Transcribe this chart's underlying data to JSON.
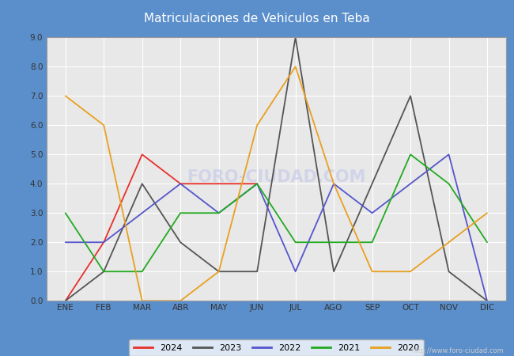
{
  "title": "Matriculaciones de Vehiculos en Teba",
  "months": [
    "ENE",
    "FEB",
    "MAR",
    "ABR",
    "MAY",
    "JUN",
    "JUL",
    "AGO",
    "SEP",
    "OCT",
    "NOV",
    "DIC"
  ],
  "series": {
    "2024": [
      0,
      2,
      5,
      4,
      4,
      4,
      null,
      null,
      null,
      null,
      null,
      null
    ],
    "2023": [
      0,
      1,
      4,
      2,
      1,
      1,
      9,
      1,
      4,
      7,
      1,
      0
    ],
    "2022": [
      2,
      2,
      3,
      4,
      3,
      4,
      1,
      4,
      3,
      4,
      5,
      0
    ],
    "2021": [
      3,
      1,
      1,
      3,
      3,
      4,
      2,
      2,
      2,
      5,
      4,
      2
    ],
    "2020": [
      7,
      6,
      0,
      0,
      1,
      6,
      8,
      4,
      1,
      1,
      2,
      3
    ]
  },
  "colors": {
    "2024": "#e8302a",
    "2023": "#555555",
    "2022": "#5555cc",
    "2021": "#22aa22",
    "2020": "#e8a020"
  },
  "ylim": [
    0.0,
    9.0
  ],
  "yticks": [
    0.0,
    1.0,
    2.0,
    3.0,
    4.0,
    5.0,
    6.0,
    7.0,
    8.0,
    9.0
  ],
  "title_bg_color": "#5b8fcb",
  "title_text_color": "#ffffff",
  "outer_bg_color": "#5b8fcb",
  "plot_bg_color": "#e8e8e8",
  "grid_color": "#ffffff",
  "watermark_color": "#c8cce8",
  "url": "http://www.foro-ciudad.com",
  "legend_years": [
    "2024",
    "2023",
    "2022",
    "2021",
    "2020"
  ]
}
